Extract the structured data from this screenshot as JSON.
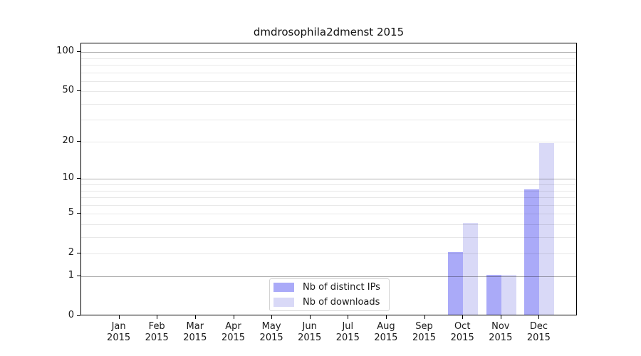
{
  "figure": {
    "title": "dmdrosophila2dmenst 2015"
  },
  "chart_data": {
    "type": "bar",
    "title": "dmdrosophila2dmenst 2015",
    "categories": [
      "Jan 2015",
      "Feb 2015",
      "Mar 2015",
      "Apr 2015",
      "May 2015",
      "Jun 2015",
      "Jul 2015",
      "Aug 2015",
      "Sep 2015",
      "Oct 2015",
      "Nov 2015",
      "Dec 2015"
    ],
    "series": [
      {
        "name": "Nb of distinct IPs",
        "color": "#aaaaf8",
        "values": [
          0,
          0,
          0,
          0,
          0,
          0,
          0,
          0,
          0,
          2,
          1,
          8
        ]
      },
      {
        "name": "Nb of downloads",
        "color": "#d9d9f7",
        "values": [
          0,
          0,
          0,
          0,
          0,
          0,
          0,
          0,
          0,
          4,
          1,
          19
        ]
      }
    ],
    "xlabel": "",
    "ylabel": "",
    "x_axis": {
      "tick_labels_line1": [
        "Jan",
        "Feb",
        "Mar",
        "Apr",
        "May",
        "Jun",
        "Jul",
        "Aug",
        "Sep",
        "Oct",
        "Nov",
        "Dec"
      ],
      "tick_labels_line2": [
        "2015",
        "2015",
        "2015",
        "2015",
        "2015",
        "2015",
        "2015",
        "2015",
        "2015",
        "2015",
        "2015",
        "2015"
      ]
    },
    "y_axis": {
      "scale": "log1p",
      "tick_values": [
        0,
        1,
        2,
        5,
        10,
        20,
        50,
        100
      ],
      "tick_labels": [
        "0",
        "1",
        "2",
        "5",
        "10",
        "20",
        "50",
        "100"
      ],
      "major_gridline_values": [
        1,
        10,
        100
      ],
      "minor_gridline_values": [
        2,
        3,
        4,
        5,
        6,
        7,
        8,
        9,
        20,
        30,
        40,
        50,
        60,
        70,
        80,
        90
      ],
      "ylim": [
        0,
        116
      ]
    },
    "legend": {
      "position": "lower center",
      "entries": [
        "Nb of distinct IPs",
        "Nb of downloads"
      ]
    },
    "colors": {
      "bar_distinct_ips": "#aaaaf8",
      "bar_downloads": "#d9d9f7",
      "grid_major": "rgba(0,0,0,0.31)",
      "grid_minor": "rgba(0,0,0,0.09)",
      "spine": "#000000",
      "text": "#1a1a1a",
      "legend_border": "#d3d3d3",
      "background": "#ffffff"
    }
  }
}
